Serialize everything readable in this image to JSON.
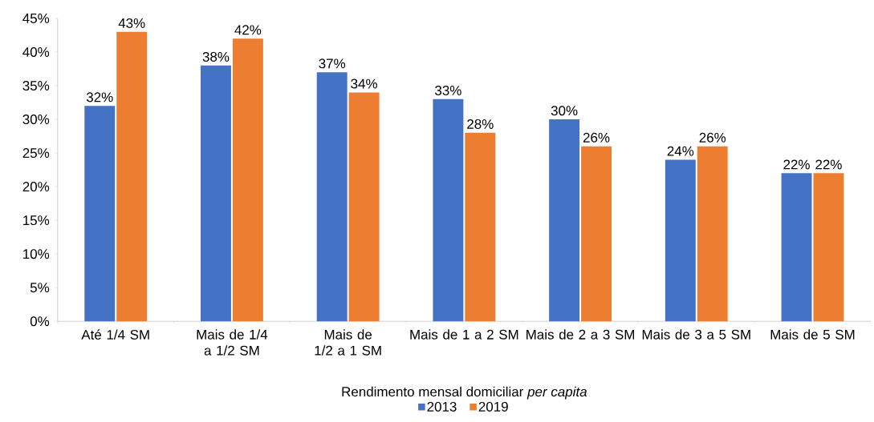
{
  "chart_data": {
    "type": "bar",
    "xlabel": "Rendimento mensal domiciliar *per capita*",
    "categories": [
      "Até 1/4 SM",
      "Mais de 1/4 a 1/2 SM",
      "Mais de 1/2 a 1 SM",
      "Mais de 1 a 2 SM",
      "Mais de 2 a 3 SM",
      "Mais de 3 a 5 SM",
      "Mais de 5 SM"
    ],
    "series": [
      {
        "name": "2013",
        "color": "#4472c4",
        "values": [
          32,
          38,
          37,
          33,
          30,
          24,
          22
        ],
        "value_labels": [
          "32%",
          "38%",
          "37%",
          "33%",
          "30%",
          "24%",
          "22%"
        ]
      },
      {
        "name": "2019",
        "color": "#ed7d31",
        "values": [
          43,
          42,
          34,
          28,
          26,
          26,
          22
        ],
        "value_labels": [
          "43%",
          "42%",
          "34%",
          "28%",
          "26%",
          "26%",
          "22%"
        ]
      }
    ],
    "ylim": [
      0,
      45
    ],
    "yticks": [
      {
        "value": 0,
        "label": "0%"
      },
      {
        "value": 5,
        "label": "5%"
      },
      {
        "value": 10,
        "label": "10%"
      },
      {
        "value": 15,
        "label": "15%"
      },
      {
        "value": 20,
        "label": "20%"
      },
      {
        "value": 25,
        "label": "25%"
      },
      {
        "value": 30,
        "label": "30%"
      },
      {
        "value": 35,
        "label": "35%"
      },
      {
        "value": 40,
        "label": "40%"
      },
      {
        "value": 45,
        "label": "45%"
      }
    ],
    "legend": "bottom"
  }
}
